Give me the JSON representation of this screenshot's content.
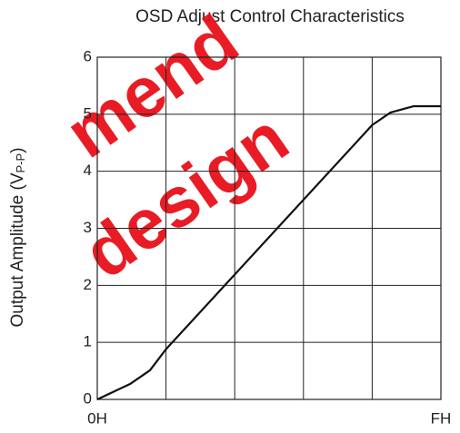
{
  "chart_data": {
    "type": "line",
    "title": "OSD Adjust Control Characteristics",
    "ylabel_parts": [
      "Output Amplitude (V",
      "P-P",
      ")"
    ],
    "x": [
      0,
      1.43,
      2.3,
      3.0,
      12.0,
      12.8,
      13.8,
      15
    ],
    "series": [
      {
        "color": "#111111",
        "values": [
          0,
          0.27,
          0.51,
          0.88,
          4.81,
          5.03,
          5.14,
          5.14
        ]
      }
    ],
    "xlim": [
      0,
      15
    ],
    "xticks": [
      {
        "value": 0,
        "label": "0H"
      },
      {
        "value": 15,
        "label": "FH"
      }
    ],
    "ylim": [
      0,
      6
    ],
    "yticks": [
      0,
      1,
      2,
      3,
      4,
      5,
      6
    ],
    "grid": true,
    "watermark": [
      "mend",
      "design"
    ]
  }
}
